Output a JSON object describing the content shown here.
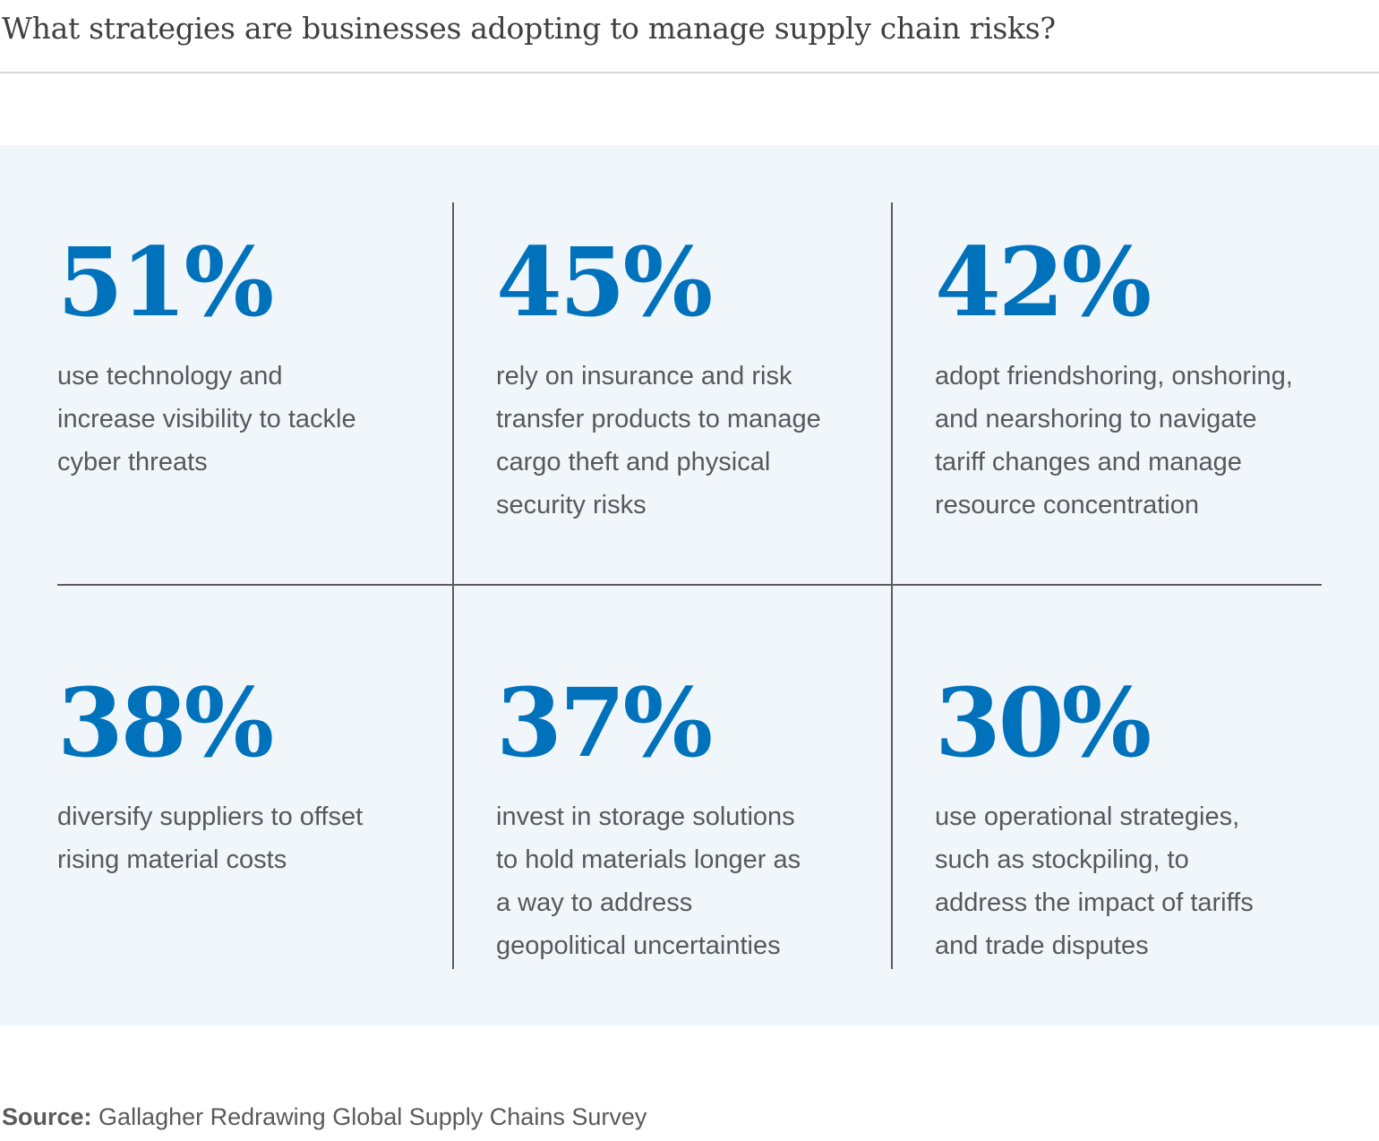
{
  "header": {
    "title": "What strategies are businesses adopting to manage supply chain risks?"
  },
  "colors": {
    "accent": "#0072bc",
    "panel_background": "#f1f6fb",
    "divider": "#5c5c5f",
    "text": "#58585a"
  },
  "stats": [
    {
      "value": "51%",
      "description": "use technology and\nincrease visibility to tackle\ncyber threats"
    },
    {
      "value": "45%",
      "description": "rely on insurance and risk\ntransfer products to manage\ncargo theft and physical\nsecurity risks"
    },
    {
      "value": "42%",
      "description": "adopt friendshoring, onshoring,\nand nearshoring to navigate\ntariff changes and manage\nresource concentration"
    },
    {
      "value": "38%",
      "description": "diversify suppliers to offset\nrising material costs"
    },
    {
      "value": "37%",
      "description": "invest in storage solutions\nto hold materials longer as\na way to address\ngeopolitical uncertainties"
    },
    {
      "value": "30%",
      "description": "use operational strategies,\nsuch as stockpiling, to\naddress the impact of tariffs\nand trade disputes"
    }
  ],
  "footer": {
    "source_label": "Source:",
    "source_text": "Gallagher Redrawing Global Supply Chains Survey"
  }
}
